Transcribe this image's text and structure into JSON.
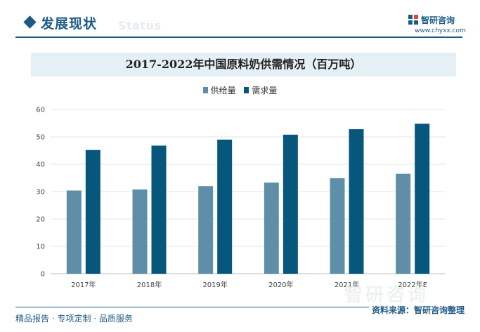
{
  "header": {
    "section_title": "发展现状",
    "section_ghost": "Status",
    "brand_name": "智研咨询",
    "brand_url": "www.chyxx.com",
    "brand_color": "#1c5a86"
  },
  "watermark": "智研咨询",
  "footer": {
    "left": "精品报告 · 专项定制 · 品质服务",
    "source": "资料来源：智研咨询整理"
  },
  "chart_data": {
    "type": "bar",
    "title": "2017-2022年中国原料奶供需情况（百万吨）",
    "categories": [
      "2017年",
      "2018年",
      "2019年",
      "2020年",
      "2021年",
      "2022年E"
    ],
    "series": [
      {
        "name": "供给量",
        "color": "#5f8fa8",
        "values": [
          30.4,
          30.8,
          32.0,
          33.3,
          34.9,
          36.5
        ]
      },
      {
        "name": "需求量",
        "color": "#07577d",
        "values": [
          45.2,
          46.8,
          49.0,
          50.8,
          52.8,
          54.8
        ]
      }
    ],
    "ylim": [
      0,
      60
    ],
    "yticks": [
      0,
      10,
      20,
      30,
      40,
      50,
      60
    ],
    "grid": true,
    "legend": "top-center"
  }
}
